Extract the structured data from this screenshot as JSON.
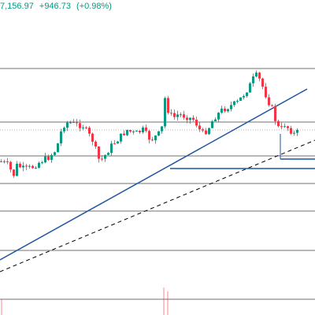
{
  "header": {
    "price_fragment": "7,156.97",
    "change_value": "+946.73",
    "change_percent": "(+0.98%)",
    "change_color": "#089981"
  },
  "colors": {
    "up_candle": "#089981",
    "down_candle": "#f23645",
    "trendline": "#1e56a0",
    "horizontal_level": "#000000",
    "dotted_level": "#9e9e9e",
    "dashed_line": "#000000"
  },
  "drawings": {
    "horizontal_levels": 9,
    "trendlines": [
      "solid-ascending-channel-top",
      "dashed-ascending-channel-bottom"
    ],
    "support_zone": "blue-box-right"
  }
}
